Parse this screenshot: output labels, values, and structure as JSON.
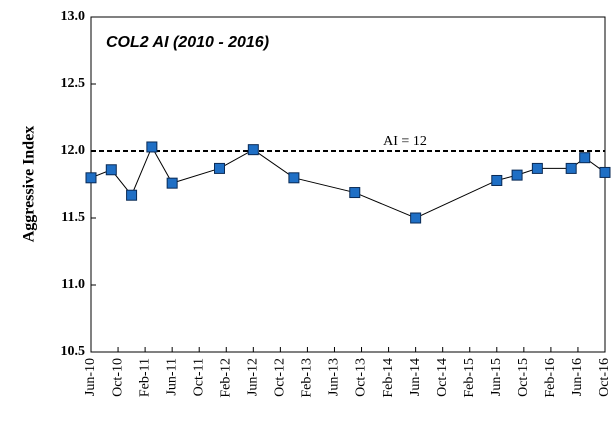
{
  "chart_data": {
    "type": "line",
    "title": "COL2 AI (2010 - 2016)",
    "y_label": "Aggressive Index",
    "x": [
      "Jun-10",
      "Sep-10",
      "Dec-10",
      "Mar-11",
      "Jun-11",
      "Jan-12",
      "Jun-12",
      "Dec-12",
      "Sep-13",
      "Jun-14",
      "Jun-15",
      "Sep-15",
      "Dec-15",
      "May-16",
      "Jul-16",
      "Oct-16"
    ],
    "series": [
      {
        "color": "#1f6fc5",
        "values": [
          11.8,
          11.86,
          11.67,
          12.03,
          11.76,
          11.87,
          12.01,
          11.8,
          11.69,
          11.5,
          11.78,
          11.82,
          11.87,
          11.87,
          11.95,
          11.84
        ]
      }
    ],
    "xlim": [
      "Jun-10",
      "Oct-16"
    ],
    "xticks": [
      "Jun-10",
      "Oct-10",
      "Feb-11",
      "Jun-11",
      "Oct-11",
      "Feb-12",
      "Jun-12",
      "Oct-12",
      "Feb-13",
      "Jun-13",
      "Oct-13",
      "Feb-14",
      "Jun-14",
      "Oct-14",
      "Feb-15",
      "Jun-15",
      "Oct-15",
      "Feb-16",
      "Jun-16",
      "Oct-16"
    ],
    "ylim": [
      10.5,
      13
    ],
    "yticks": [
      10.5,
      {
        "value": 11,
        "label": "11.0"
      },
      11.5,
      {
        "value": 12,
        "label": "12.0"
      },
      12.5,
      {
        "value": 13,
        "label": "13.0"
      }
    ],
    "reference_line": {
      "value": 12,
      "label": "AI = 12"
    }
  }
}
